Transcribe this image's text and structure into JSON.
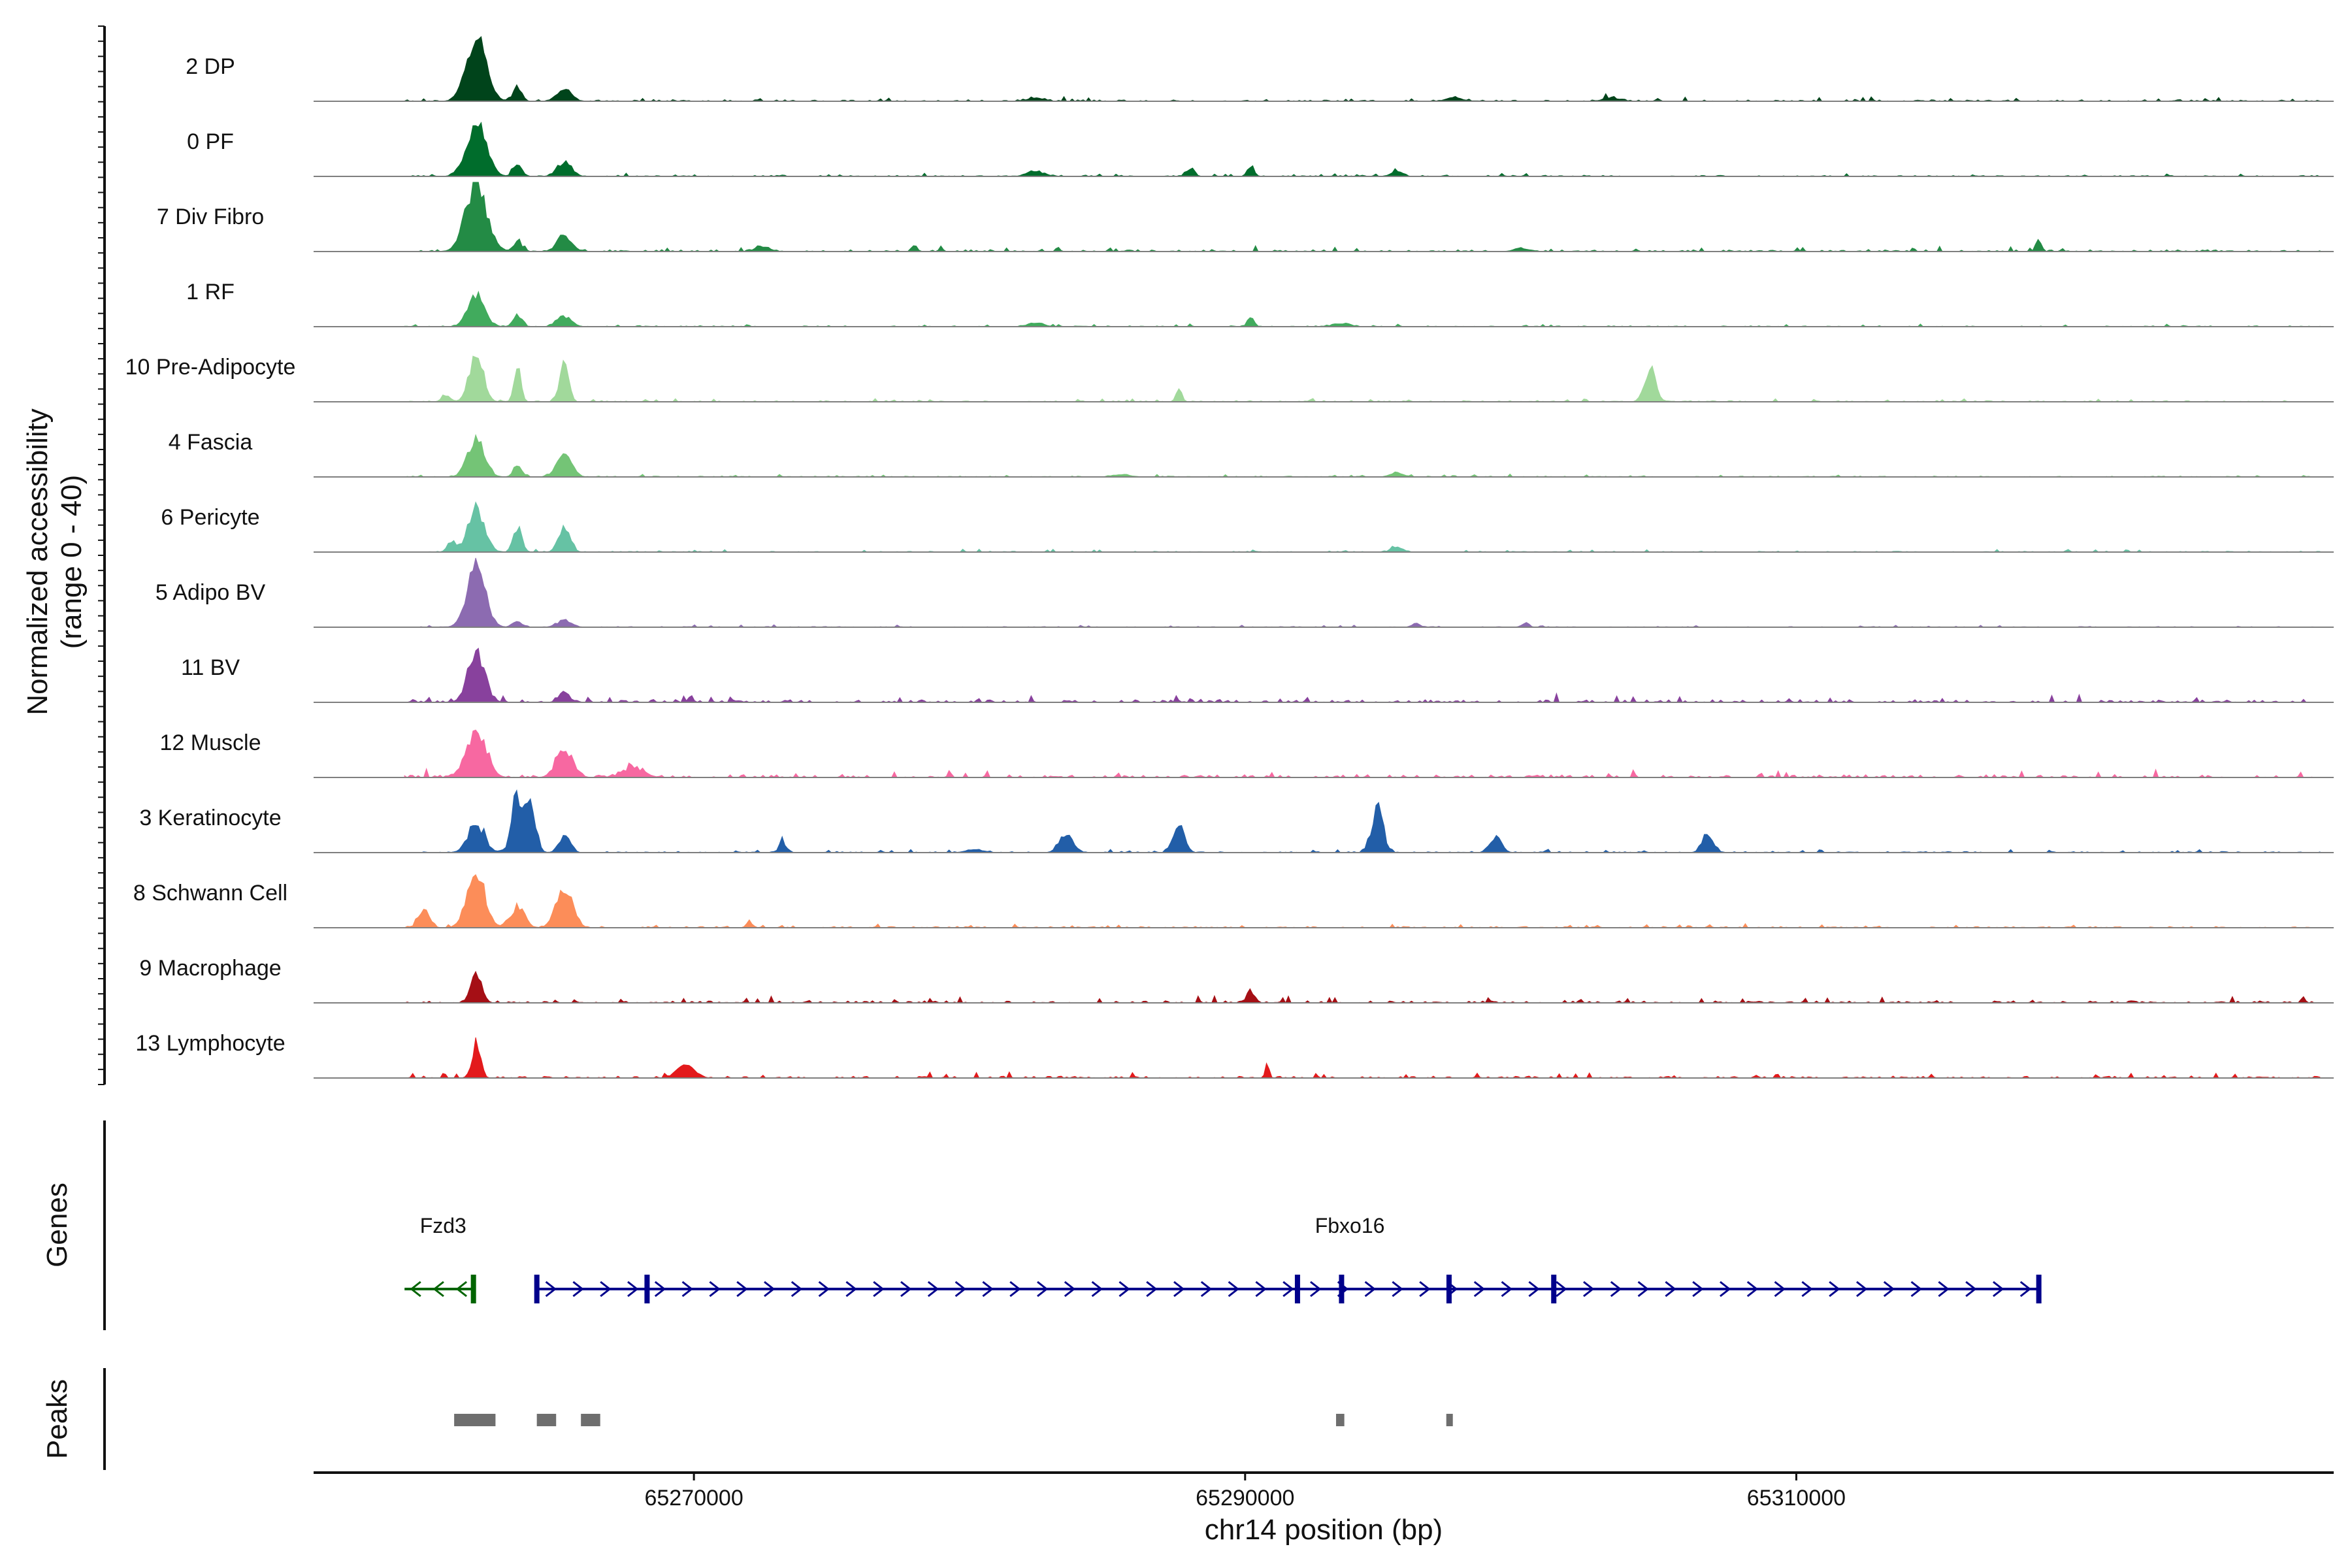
{
  "chart_data": {
    "type": "area",
    "title": "",
    "ylabel_line1": "Normalized accessibility",
    "ylabel_line2": "(range 0 - 40)",
    "xlabel": "chr14 position (bp)",
    "xlim": [
      65256200,
      65329500
    ],
    "ylim": [
      0,
      40
    ],
    "x_ticks": [
      65270000,
      65290000,
      65310000
    ],
    "x_tick_labels": [
      "65270000",
      "65290000",
      "65310000"
    ],
    "signal_extent": [
      65259500,
      65329000
    ],
    "tracks": [
      {
        "name": "2 DP",
        "color": "#00441b",
        "peaks": [
          [
            65262100,
            38,
            350
          ],
          [
            65263600,
            8,
            150
          ],
          [
            65265300,
            7,
            260
          ],
          [
            65297600,
            2,
            300
          ],
          [
            65303300,
            2,
            300
          ],
          [
            65282400,
            2,
            300
          ]
        ],
        "noise": 0.8
      },
      {
        "name": "0 PF",
        "color": "#006d2c",
        "peaks": [
          [
            65262100,
            32,
            350
          ],
          [
            65263600,
            7,
            150
          ],
          [
            65265300,
            8,
            260
          ],
          [
            65290200,
            6,
            120
          ],
          [
            65288000,
            4,
            150
          ],
          [
            65282400,
            3,
            300
          ],
          [
            65295500,
            3,
            200
          ]
        ],
        "noise": 0.6
      },
      {
        "name": "7 Div Fibro",
        "color": "#238b45",
        "peaks": [
          [
            65262100,
            40,
            370
          ],
          [
            65263600,
            6,
            150
          ],
          [
            65265300,
            9,
            260
          ],
          [
            65272500,
            3,
            250
          ],
          [
            65278000,
            4,
            100
          ],
          [
            65318800,
            6,
            100
          ],
          [
            65300000,
            2,
            250
          ]
        ],
        "noise": 1.0
      },
      {
        "name": "1 RF",
        "color": "#41ab5d",
        "peaks": [
          [
            65262100,
            18,
            300
          ],
          [
            65263600,
            7,
            150
          ],
          [
            65265300,
            6,
            260
          ],
          [
            65290200,
            5,
            120
          ],
          [
            65282400,
            2,
            300
          ],
          [
            65293500,
            2,
            300
          ]
        ],
        "noise": 0.5
      },
      {
        "name": "10 Pre-Adipocyte",
        "color": "#a1d99b",
        "peaks": [
          [
            65262100,
            28,
            250
          ],
          [
            65263600,
            20,
            120
          ],
          [
            65265300,
            26,
            150
          ],
          [
            65287600,
            8,
            100
          ],
          [
            65304700,
            20,
            200
          ],
          [
            65261000,
            4,
            150
          ]
        ],
        "noise": 0.6
      },
      {
        "name": "4 Fascia",
        "color": "#74c476",
        "peaks": [
          [
            65262100,
            22,
            300
          ],
          [
            65263600,
            7,
            150
          ],
          [
            65265300,
            14,
            260
          ],
          [
            65295500,
            3,
            200
          ],
          [
            65285500,
            1.5,
            300
          ]
        ],
        "noise": 0.5
      },
      {
        "name": "6 Pericyte",
        "color": "#66c2a4",
        "peaks": [
          [
            65262100,
            24,
            300
          ],
          [
            65263600,
            14,
            150
          ],
          [
            65265300,
            16,
            200
          ],
          [
            65261200,
            6,
            150
          ],
          [
            65295500,
            3,
            200
          ]
        ],
        "noise": 0.5
      },
      {
        "name": "5 Adipo BV",
        "color": "#8c6bb1",
        "peaks": [
          [
            65262100,
            34,
            330
          ],
          [
            65263600,
            4,
            150
          ],
          [
            65265300,
            4,
            260
          ],
          [
            65296200,
            2,
            150
          ],
          [
            65300200,
            3,
            100
          ]
        ],
        "noise": 0.4
      },
      {
        "name": "11 BV",
        "color": "#88419d",
        "peaks": [
          [
            65262100,
            30,
            300
          ],
          [
            65265300,
            5,
            200
          ]
        ],
        "noise": 1.5
      },
      {
        "name": "12 Muscle",
        "color": "#f768a1",
        "peaks": [
          [
            65262100,
            26,
            350
          ],
          [
            65265300,
            16,
            300
          ],
          [
            65267800,
            5,
            400
          ]
        ],
        "noise": 1.5
      },
      {
        "name": "3 Keratinocyte",
        "color": "#225ea8",
        "peaks": [
          [
            65262100,
            16,
            300
          ],
          [
            65263600,
            34,
            200
          ],
          [
            65264100,
            26,
            180
          ],
          [
            65265300,
            10,
            200
          ],
          [
            65273200,
            8,
            100
          ],
          [
            65283500,
            10,
            250
          ],
          [
            65287600,
            16,
            200
          ],
          [
            65294800,
            27,
            200
          ],
          [
            65299100,
            9,
            200
          ],
          [
            65306800,
            11,
            200
          ],
          [
            65280200,
            2,
            300
          ]
        ],
        "noise": 0.6
      },
      {
        "name": "8 Schwann Cell",
        "color": "#fc8d59",
        "peaks": [
          [
            65260200,
            10,
            200
          ],
          [
            65262100,
            30,
            330
          ],
          [
            65263600,
            12,
            250
          ],
          [
            65265300,
            22,
            300
          ],
          [
            65272000,
            4,
            100
          ]
        ],
        "noise": 0.7
      },
      {
        "name": "9 Macrophage",
        "color": "#a50f15",
        "peaks": [
          [
            65262100,
            16,
            200
          ],
          [
            65290200,
            6,
            150
          ]
        ],
        "noise": 1.2
      },
      {
        "name": "13 Lymphocyte",
        "color": "#e31a1c",
        "peaks": [
          [
            65262100,
            20,
            150
          ],
          [
            65269700,
            8,
            300
          ],
          [
            65290800,
            8,
            60
          ]
        ],
        "noise": 1.0
      }
    ],
    "genes": [
      {
        "name": "Fzd3",
        "color": "#006400",
        "start": 65259500,
        "end": 65262000,
        "strand": "-",
        "exons": [
          65262000
        ],
        "label_x": 65260900
      },
      {
        "name": "Fbxo16",
        "color": "#00008b",
        "start": 65264300,
        "end": 65318800,
        "strand": "+",
        "exons": [
          65264300,
          65268300,
          65291900,
          65293500,
          65297400,
          65301200,
          65318800
        ],
        "label_x": 65293800
      }
    ],
    "peaks": [
      [
        65261300,
        65262800
      ],
      [
        65264300,
        65265000
      ],
      [
        65265900,
        65266600
      ],
      [
        65293300,
        65293600
      ],
      [
        65297300,
        65297500
      ]
    ],
    "panel_labels": {
      "genes": "Genes",
      "peaks": "Peaks"
    }
  }
}
